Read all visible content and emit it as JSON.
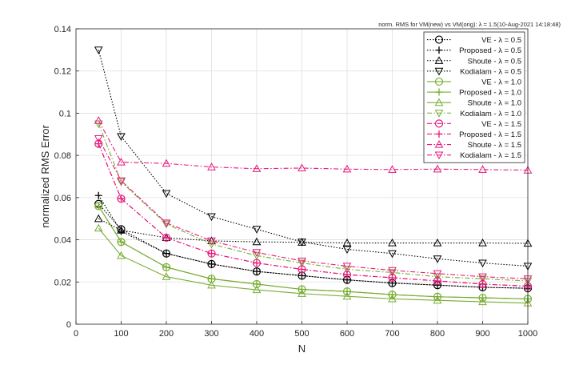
{
  "chart_data": {
    "type": "line",
    "title": "norm. RMS for VM(new) vs VM(orig): λ = 1.5(10-Aug-2021 14:18:48)",
    "xlabel": "N",
    "ylabel": "normalized RMS Error",
    "xlim": [
      0,
      1000
    ],
    "ylim": [
      0,
      0.14
    ],
    "xticks": [
      0,
      100,
      200,
      300,
      400,
      500,
      600,
      700,
      800,
      900,
      1000
    ],
    "yticks": [
      0,
      0.02,
      0.04,
      0.06,
      0.08,
      0.1,
      0.12,
      0.14
    ],
    "grid": true,
    "legend_position": "top-right",
    "x": [
      50,
      100,
      200,
      300,
      400,
      500,
      600,
      700,
      800,
      900,
      1000
    ],
    "series": [
      {
        "name": "VE - λ = 0.5",
        "color": "#000000",
        "dash": "dotted",
        "marker": "circle",
        "values": [
          0.057,
          0.045,
          0.0335,
          0.0285,
          0.025,
          0.023,
          0.021,
          0.0195,
          0.0185,
          0.0175,
          0.017
        ]
      },
      {
        "name": "Proposed - λ = 0.5",
        "color": "#000000",
        "dash": "dotted",
        "marker": "plus",
        "values": [
          0.061,
          0.044,
          0.0335,
          0.0285,
          0.025,
          0.023,
          0.021,
          0.0195,
          0.0185,
          0.0175,
          0.017
        ]
      },
      {
        "name": "Shoute - λ = 0.5",
        "color": "#000000",
        "dash": "dotted",
        "marker": "triangle-up",
        "values": [
          0.05,
          0.0445,
          0.041,
          0.0395,
          0.039,
          0.0388,
          0.0385,
          0.0385,
          0.0385,
          0.0385,
          0.0383
        ]
      },
      {
        "name": "Kodialam - λ = 0.5",
        "color": "#000000",
        "dash": "dotted",
        "marker": "triangle-down",
        "values": [
          0.13,
          0.089,
          0.062,
          0.051,
          0.045,
          0.039,
          0.0355,
          0.0335,
          0.031,
          0.029,
          0.0275
        ]
      },
      {
        "name": "VE - λ = 1.0",
        "color": "#77ac30",
        "dash": "solid",
        "marker": "circle",
        "values": [
          0.056,
          0.039,
          0.027,
          0.0215,
          0.019,
          0.0165,
          0.0155,
          0.014,
          0.013,
          0.0125,
          0.012
        ]
      },
      {
        "name": "Proposed - λ = 1.0",
        "color": "#77ac30",
        "dash": "solid",
        "marker": "plus",
        "values": [
          0.056,
          0.039,
          0.027,
          0.0215,
          0.019,
          0.0165,
          0.0155,
          0.014,
          0.013,
          0.0125,
          0.012
        ]
      },
      {
        "name": "Shoute - λ = 1.0",
        "color": "#77ac30",
        "dash": "solid",
        "marker": "triangle-up",
        "values": [
          0.0455,
          0.0325,
          0.0225,
          0.0185,
          0.0163,
          0.0145,
          0.0132,
          0.012,
          0.0113,
          0.0106,
          0.01
        ]
      },
      {
        "name": "Kodialam - λ = 1.0",
        "color": "#77ac30",
        "dash": "dashdot",
        "marker": "triangle-down",
        "values": [
          0.095,
          0.0675,
          0.0475,
          0.038,
          0.0325,
          0.029,
          0.026,
          0.0245,
          0.0225,
          0.0215,
          0.0205
        ]
      },
      {
        "name": "VE - λ = 1.5",
        "color": "#e8197d",
        "dash": "dashdot",
        "marker": "circle",
        "values": [
          0.0855,
          0.0595,
          0.041,
          0.0335,
          0.029,
          0.026,
          0.0235,
          0.022,
          0.0205,
          0.019,
          0.018
        ]
      },
      {
        "name": "Proposed - λ = 1.5",
        "color": "#e8197d",
        "dash": "dashdot",
        "marker": "plus",
        "values": [
          0.0855,
          0.0595,
          0.041,
          0.0335,
          0.029,
          0.026,
          0.0235,
          0.022,
          0.0205,
          0.019,
          0.018
        ]
      },
      {
        "name": "Shoute - λ = 1.5",
        "color": "#e8197d",
        "dash": "dashdot",
        "marker": "triangle-up",
        "values": [
          0.0965,
          0.0768,
          0.0762,
          0.0745,
          0.0737,
          0.074,
          0.0735,
          0.0733,
          0.0735,
          0.0733,
          0.073
        ]
      },
      {
        "name": "Kodialam - λ = 1.5",
        "color": "#e8197d",
        "dash": "dashdot",
        "marker": "triangle-down",
        "values": [
          0.088,
          0.068,
          0.048,
          0.0395,
          0.034,
          0.03,
          0.0275,
          0.0255,
          0.024,
          0.0225,
          0.0215
        ]
      }
    ]
  }
}
